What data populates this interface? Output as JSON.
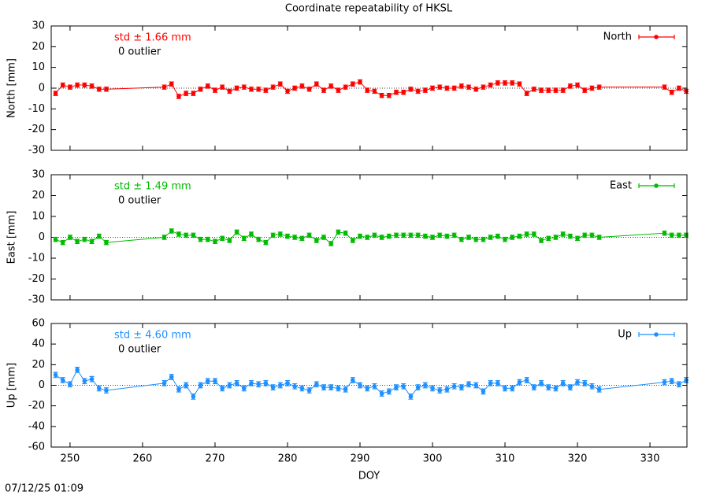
{
  "title": "Coordinate repeatability of HKSL",
  "timestamp": "07/12/25 01:09",
  "chart_data": [
    {
      "type": "line",
      "ylabel": "North [mm]",
      "std_label": "std ± 1.66 mm",
      "outlier_label": "0 outlier",
      "legend": "top-right",
      "x": [
        248,
        249,
        250,
        251,
        252,
        253,
        254,
        255,
        263,
        264,
        265,
        266,
        267,
        268,
        269,
        270,
        271,
        272,
        273,
        274,
        275,
        276,
        277,
        278,
        279,
        280,
        281,
        282,
        283,
        284,
        285,
        286,
        287,
        288,
        289,
        290,
        291,
        292,
        293,
        294,
        295,
        296,
        297,
        298,
        299,
        300,
        301,
        302,
        303,
        304,
        305,
        306,
        307,
        308,
        309,
        310,
        311,
        312,
        313,
        314,
        315,
        316,
        317,
        318,
        319,
        320,
        321,
        322,
        323,
        332,
        333,
        334,
        335
      ],
      "series": [
        {
          "name": "North",
          "color": "#ff0000",
          "error": 1.0,
          "values": [
            -2.5,
            1.5,
            0.5,
            1.5,
            1.5,
            1,
            -0.5,
            -0.5,
            0.5,
            2,
            -4,
            -2.5,
            -2.5,
            -0.5,
            1,
            -1,
            0.5,
            -1.5,
            0,
            0.5,
            -0.5,
            -0.5,
            -1,
            0.5,
            2,
            -1.5,
            0,
            1,
            -0.5,
            2,
            -1,
            1,
            -1,
            0.5,
            2,
            3,
            -1,
            -1.5,
            -3.5,
            -3.5,
            -2,
            -2,
            -0.5,
            -1.5,
            -1,
            0,
            0.5,
            0,
            0,
            1,
            0.5,
            -0.5,
            0.5,
            1.5,
            2.5,
            2.5,
            2.5,
            2,
            -2.5,
            -0.5,
            -1,
            -1,
            -1,
            -1,
            1,
            1.5,
            -1,
            0,
            0.5,
            0.5,
            -2,
            0,
            -1.5
          ]
        }
      ],
      "xlim": [
        247.4,
        335.1
      ],
      "xticks": [
        250,
        260,
        270,
        280,
        290,
        300,
        310,
        320,
        330
      ],
      "ylim": [
        -30,
        30
      ],
      "yticks": [
        -30,
        -20,
        -10,
        0,
        10,
        20,
        30
      ]
    },
    {
      "type": "line",
      "ylabel": "East [mm]",
      "std_label": "std ± 1.49 mm",
      "outlier_label": "0 outlier",
      "legend": "top-right",
      "x": [
        248,
        249,
        250,
        251,
        252,
        253,
        254,
        255,
        263,
        264,
        265,
        266,
        267,
        268,
        269,
        270,
        271,
        272,
        273,
        274,
        275,
        276,
        277,
        278,
        279,
        280,
        281,
        282,
        283,
        284,
        285,
        286,
        287,
        288,
        289,
        290,
        291,
        292,
        293,
        294,
        295,
        296,
        297,
        298,
        299,
        300,
        301,
        302,
        303,
        304,
        305,
        306,
        307,
        308,
        309,
        310,
        311,
        312,
        313,
        314,
        315,
        316,
        317,
        318,
        319,
        320,
        321,
        322,
        323,
        332,
        333,
        334,
        335
      ],
      "series": [
        {
          "name": "East",
          "color": "#00bb00",
          "error": 1.0,
          "values": [
            -1,
            -2.5,
            0,
            -2,
            -1,
            -2,
            0.5,
            -2.5,
            0,
            3,
            1.5,
            1,
            1,
            -1,
            -1,
            -2,
            -0.5,
            -1.5,
            2.5,
            -0.5,
            1.5,
            -1,
            -2.5,
            1,
            1.5,
            0.5,
            0,
            -0.5,
            1,
            -1.5,
            0,
            -3,
            2.5,
            2,
            -1.5,
            0.5,
            0,
            1,
            0,
            0.5,
            1,
            1,
            1,
            1,
            0.5,
            0,
            1,
            0.5,
            1,
            -1,
            0,
            -1,
            -1,
            0,
            0.5,
            -1,
            0,
            0.5,
            1.5,
            1.5,
            -1.5,
            -0.5,
            0,
            1.5,
            0.5,
            -0.5,
            1,
            1,
            0,
            2,
            1,
            1,
            1
          ]
        }
      ],
      "xlim": [
        247.4,
        335.1
      ],
      "xticks": [
        250,
        260,
        270,
        280,
        290,
        300,
        310,
        320,
        330
      ],
      "ylim": [
        -30,
        30
      ],
      "yticks": [
        -30,
        -20,
        -10,
        0,
        10,
        20,
        30
      ]
    },
    {
      "type": "line",
      "ylabel": "Up [mm]",
      "xlabel": "DOY",
      "std_label": "std ± 4.60 mm",
      "outlier_label": "0 outlier",
      "legend": "top-right",
      "x": [
        248,
        249,
        250,
        251,
        252,
        253,
        254,
        255,
        263,
        264,
        265,
        266,
        267,
        268,
        269,
        270,
        271,
        272,
        273,
        274,
        275,
        276,
        277,
        278,
        279,
        280,
        281,
        282,
        283,
        284,
        285,
        286,
        287,
        288,
        289,
        290,
        291,
        292,
        293,
        294,
        295,
        296,
        297,
        298,
        299,
        300,
        301,
        302,
        303,
        304,
        305,
        306,
        307,
        308,
        309,
        310,
        311,
        312,
        313,
        314,
        315,
        316,
        317,
        318,
        319,
        320,
        321,
        322,
        323,
        332,
        333,
        334,
        335
      ],
      "series": [
        {
          "name": "Up",
          "color": "#1e90ff",
          "error": 2.5,
          "values": [
            10,
            5,
            1,
            15,
            4,
            6,
            -3,
            -5,
            2,
            8,
            -4,
            0,
            -11,
            0,
            4,
            4,
            -3,
            0,
            2,
            -3,
            2,
            1,
            2,
            -2,
            0,
            2,
            -1,
            -3,
            -5,
            1,
            -2,
            -2,
            -3,
            -4,
            5,
            0,
            -3,
            -1,
            -8,
            -6,
            -2,
            -1,
            -11,
            -2,
            0,
            -3,
            -5,
            -4,
            -1,
            -2,
            1,
            0,
            -6,
            2,
            2,
            -3,
            -3,
            3,
            5,
            -2,
            2,
            -2,
            -3,
            2,
            -2,
            3,
            2,
            -1,
            -4,
            3,
            4,
            1,
            5
          ]
        }
      ],
      "xlim": [
        247.4,
        335.1
      ],
      "xticks": [
        250,
        260,
        270,
        280,
        290,
        300,
        310,
        320,
        330
      ],
      "ylim": [
        -60,
        60
      ],
      "yticks": [
        -60,
        -40,
        -20,
        0,
        20,
        40,
        60
      ]
    }
  ]
}
